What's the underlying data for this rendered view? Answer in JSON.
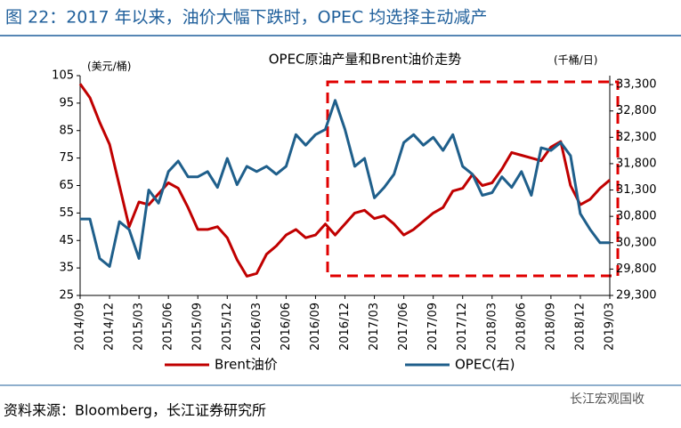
{
  "figure_title": "图 22：2017 年以来，油价大幅下跌时，OPEC 均选择主动减产",
  "source": "资料来源：Bloomberg，长江证券研究所",
  "watermark": "长江宏观国收",
  "chart_data": {
    "type": "line",
    "title": "OPEC原油产量和Brent油价走势",
    "y_label": "(美元/桶)",
    "y2_label": "(千桶/日)",
    "categories": [
      "2014/09",
      null,
      null,
      "2014/12",
      null,
      null,
      "2015/03",
      null,
      null,
      "2015/06",
      null,
      null,
      "2015/09",
      null,
      null,
      "2015/12",
      null,
      null,
      "2016/03",
      null,
      null,
      "2016/06",
      null,
      null,
      "2016/09",
      null,
      null,
      "2016/12",
      null,
      null,
      "2017/03",
      null,
      null,
      "2017/06",
      null,
      null,
      "2017/09",
      null,
      null,
      "2017/12",
      null,
      null,
      "2018/03",
      null,
      null,
      "2018/06",
      null,
      null,
      "2018/09",
      null,
      null,
      "2018/12",
      null,
      null,
      "2019/03"
    ],
    "ylim": [
      25,
      105
    ],
    "yticks": [
      25,
      35,
      45,
      55,
      65,
      75,
      85,
      95,
      105
    ],
    "y2lim": [
      29300,
      33470
    ],
    "y2ticks": [
      {
        "value": 29300,
        "label": "29,300"
      },
      {
        "value": 29800,
        "label": "29,800"
      },
      {
        "value": 30300,
        "label": "30,300"
      },
      {
        "value": 30800,
        "label": "30,800"
      },
      {
        "value": 31300,
        "label": "31,300"
      },
      {
        "value": 31800,
        "label": "31,800"
      },
      {
        "value": 32300,
        "label": "32,300"
      },
      {
        "value": 32800,
        "label": "32,800"
      },
      {
        "value": 33300,
        "label": "33,300"
      }
    ],
    "series": [
      {
        "name": "Brent油价",
        "color": "#c00000",
        "values": [
          102,
          97,
          88,
          80,
          65,
          50,
          59,
          58,
          62,
          66,
          64,
          57,
          49,
          49,
          50,
          46,
          38,
          32,
          33,
          40,
          43,
          47,
          49,
          46,
          47,
          51,
          47,
          51,
          55,
          56,
          53,
          54,
          51,
          47,
          49,
          52,
          55,
          57,
          63,
          64,
          69,
          65,
          66,
          71,
          77,
          76,
          75,
          74,
          79,
          81,
          65,
          58,
          60,
          64,
          67
        ]
      },
      {
        "name": "OPEC(右)",
        "color": "#1f5f8b",
        "axis": "y2",
        "values": [
          30750,
          30750,
          30000,
          29850,
          30700,
          30550,
          30000,
          31300,
          31050,
          31650,
          31850,
          31550,
          31550,
          31650,
          31350,
          31900,
          31400,
          31750,
          31650,
          31750,
          31600,
          31750,
          32350,
          32150,
          32350,
          32450,
          33000,
          32450,
          31750,
          31900,
          31150,
          31350,
          31600,
          32200,
          32350,
          32150,
          32300,
          32050,
          32350,
          31750,
          31600,
          31200,
          31250,
          31550,
          31350,
          31650,
          31200,
          32100,
          32050,
          32200,
          31950,
          30850,
          30550,
          30300,
          30300
        ]
      }
    ]
  }
}
